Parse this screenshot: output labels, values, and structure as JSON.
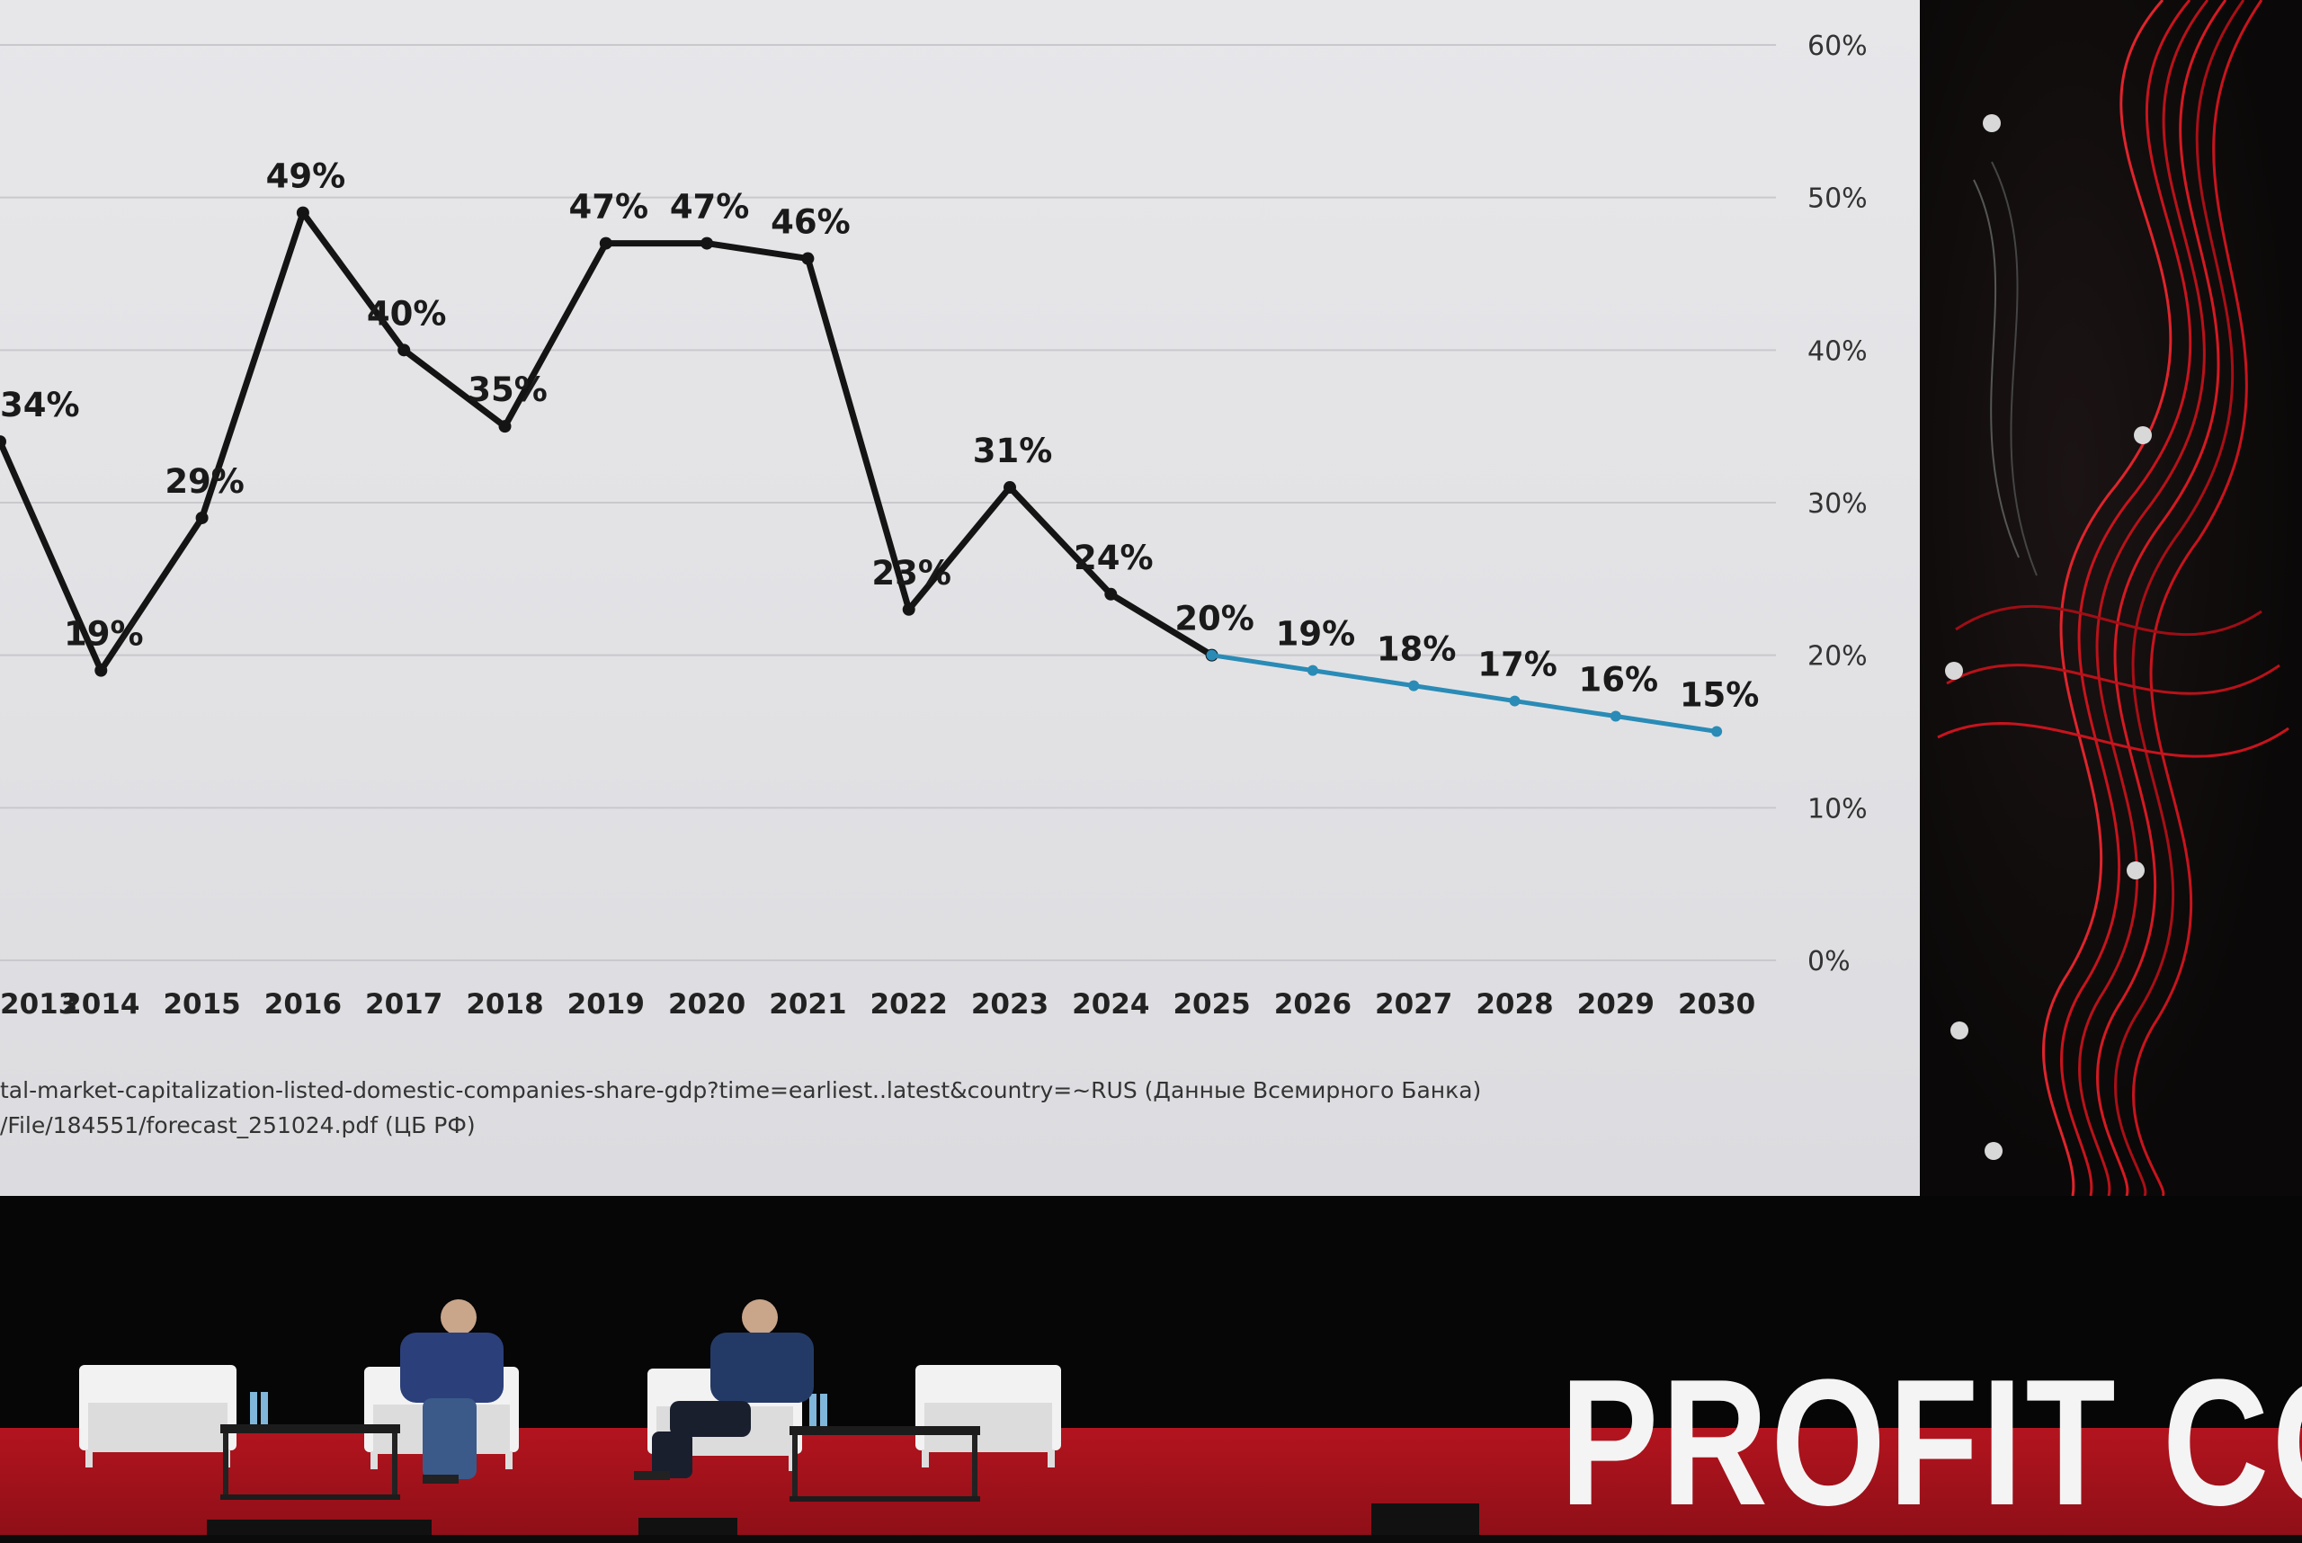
{
  "chart_data": {
    "type": "line",
    "x": [
      "2013",
      "2014",
      "2015",
      "2016",
      "2017",
      "2018",
      "2019",
      "2020",
      "2021",
      "2022",
      "2023",
      "2024",
      "2025",
      "2026",
      "2027",
      "2028",
      "2029",
      "2030"
    ],
    "series": [
      {
        "values": [
          34,
          19,
          29,
          49,
          40,
          35,
          47,
          47,
          46,
          23,
          31,
          24,
          20,
          null,
          null,
          null,
          null,
          null
        ],
        "color": "#141414"
      },
      {
        "values": [
          null,
          null,
          null,
          null,
          null,
          null,
          null,
          null,
          null,
          null,
          null,
          null,
          20,
          19,
          18,
          17,
          16,
          15
        ],
        "color": "#2a8bb6"
      }
    ],
    "data_labels": [
      "34%",
      "19%",
      "29%",
      "49%",
      "40%",
      "35%",
      "47%",
      "47%",
      "46%",
      "23%",
      "31%",
      "24%",
      "20%",
      "19%",
      "18%",
      "17%",
      "16%",
      "15%"
    ],
    "y_ticks": [
      "0%",
      "10%",
      "20%",
      "30%",
      "40%",
      "50%",
      "60%"
    ],
    "ylim": [
      0,
      60
    ],
    "y_axis_position": "right",
    "grid": true,
    "legend": "none",
    "sources": [
      "tal-market-capitalization-listed-domestic-companies-share-gdp?time=earliest..latest&country=~RUS (Данные Всемирного Банка)",
      "/File/184551/forecast_251024.pdf (ЦБ РФ)"
    ]
  },
  "stage": {
    "brand_text": "PROFIT CO",
    "colors": {
      "floor": "#b3141e",
      "wave": "#d01822",
      "screen": "#e4e4e7"
    }
  }
}
